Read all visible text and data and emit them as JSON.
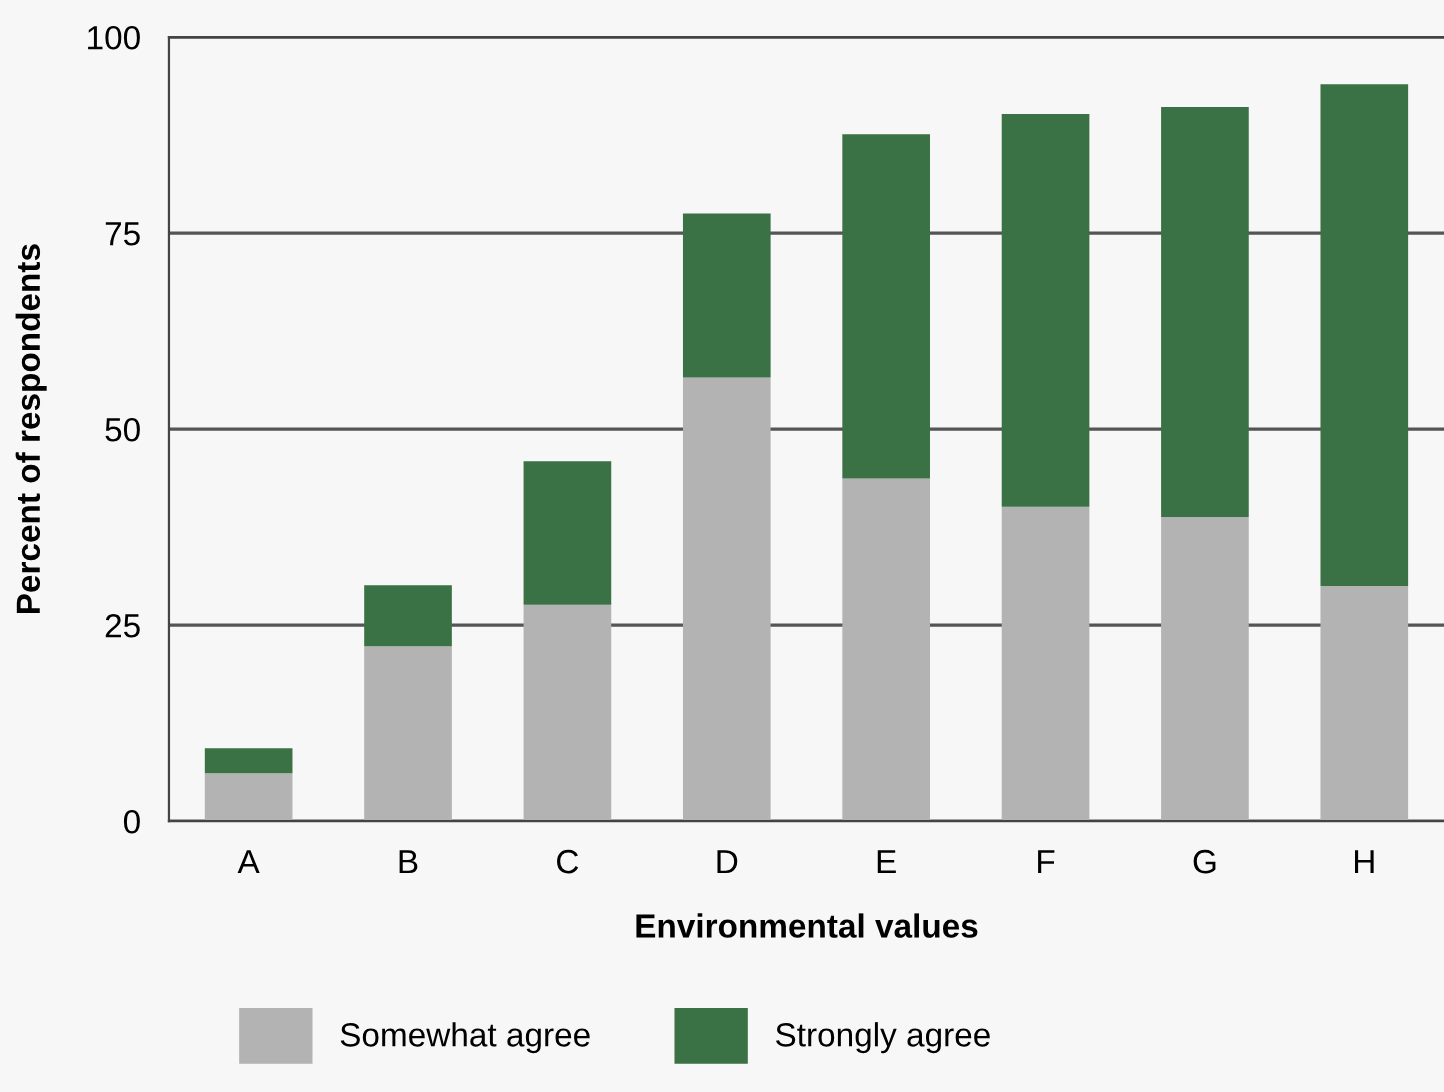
{
  "chart_data": {
    "type": "bar",
    "stacked": true,
    "xlabel": "Environmental values",
    "ylabel": "Percent of respondents",
    "categories": [
      "A",
      "B",
      "C",
      "D",
      "E",
      "F",
      "G",
      "H"
    ],
    "series": [
      {
        "name": "Somewhat agree",
        "color": "#b3b3b3",
        "values": [
          6.1,
          22.3,
          27.6,
          56.6,
          43.7,
          40.1,
          38.8,
          30.0
        ]
      },
      {
        "name": "Strongly agree",
        "color": "#3a7145",
        "values": [
          3.2,
          7.8,
          18.3,
          20.9,
          43.9,
          50.1,
          52.3,
          64.0
        ]
      }
    ],
    "ylim": [
      0,
      100
    ],
    "yticks": [
      0,
      25,
      50,
      75,
      100
    ],
    "grid": "y",
    "legend": "bottom"
  }
}
